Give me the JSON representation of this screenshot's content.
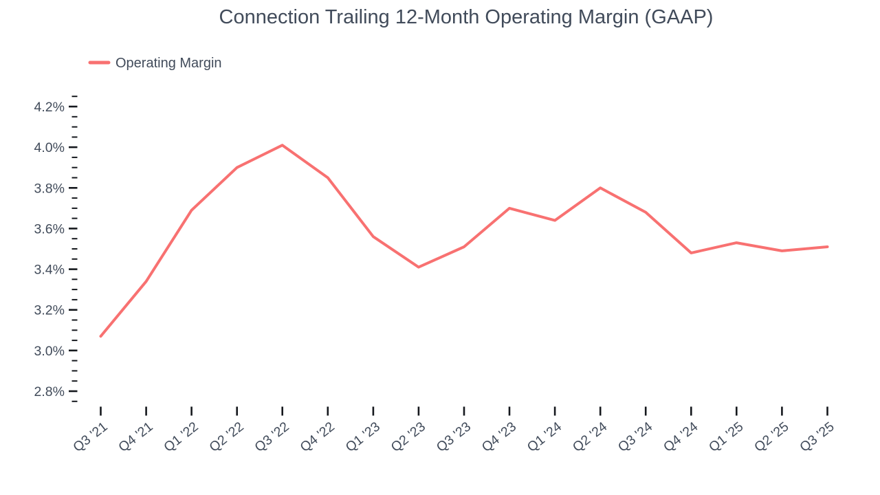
{
  "title": "Connection Trailing 12-Month Operating Margin (GAAP)",
  "legend": {
    "items": [
      {
        "label": "Operating Margin",
        "swatch_color": "#F87171"
      }
    ]
  },
  "colors": {
    "line": "#F87171",
    "text": "#414B5A",
    "tick": "#15181D",
    "background": "#FFFFFF"
  },
  "chart_data": {
    "type": "line",
    "title": "Connection Trailing 12-Month Operating Margin (GAAP)",
    "categories": [
      "Q3 '21",
      "Q4 '21",
      "Q1 '22",
      "Q2 '22",
      "Q3 '22",
      "Q4 '22",
      "Q1 '23",
      "Q2 '23",
      "Q3 '23",
      "Q4 '23",
      "Q1 '24",
      "Q2 '24",
      "Q3 '24",
      "Q4 '24",
      "Q1 '25",
      "Q2 '25",
      "Q3 '25"
    ],
    "series": [
      {
        "name": "Operating Margin",
        "color": "#F87171",
        "values": [
          3.07,
          3.34,
          3.69,
          3.9,
          4.01,
          3.85,
          3.56,
          3.41,
          3.51,
          3.7,
          3.64,
          3.8,
          3.68,
          3.48,
          3.53,
          3.49,
          3.51
        ]
      }
    ],
    "unit": "%",
    "xlabel": "",
    "ylabel": "",
    "ylim": [
      2.75,
      4.25
    ],
    "y_major_step": 0.2,
    "y_minor_step": 0.05,
    "y_tick_labels": [
      "2.8%",
      "3.0%",
      "3.2%",
      "3.4%",
      "3.6%",
      "3.8%",
      "4.0%",
      "4.2%"
    ],
    "x_tick_rotation_deg": -38,
    "grid": false,
    "axis_lines": false,
    "legend_position": "top-left"
  }
}
